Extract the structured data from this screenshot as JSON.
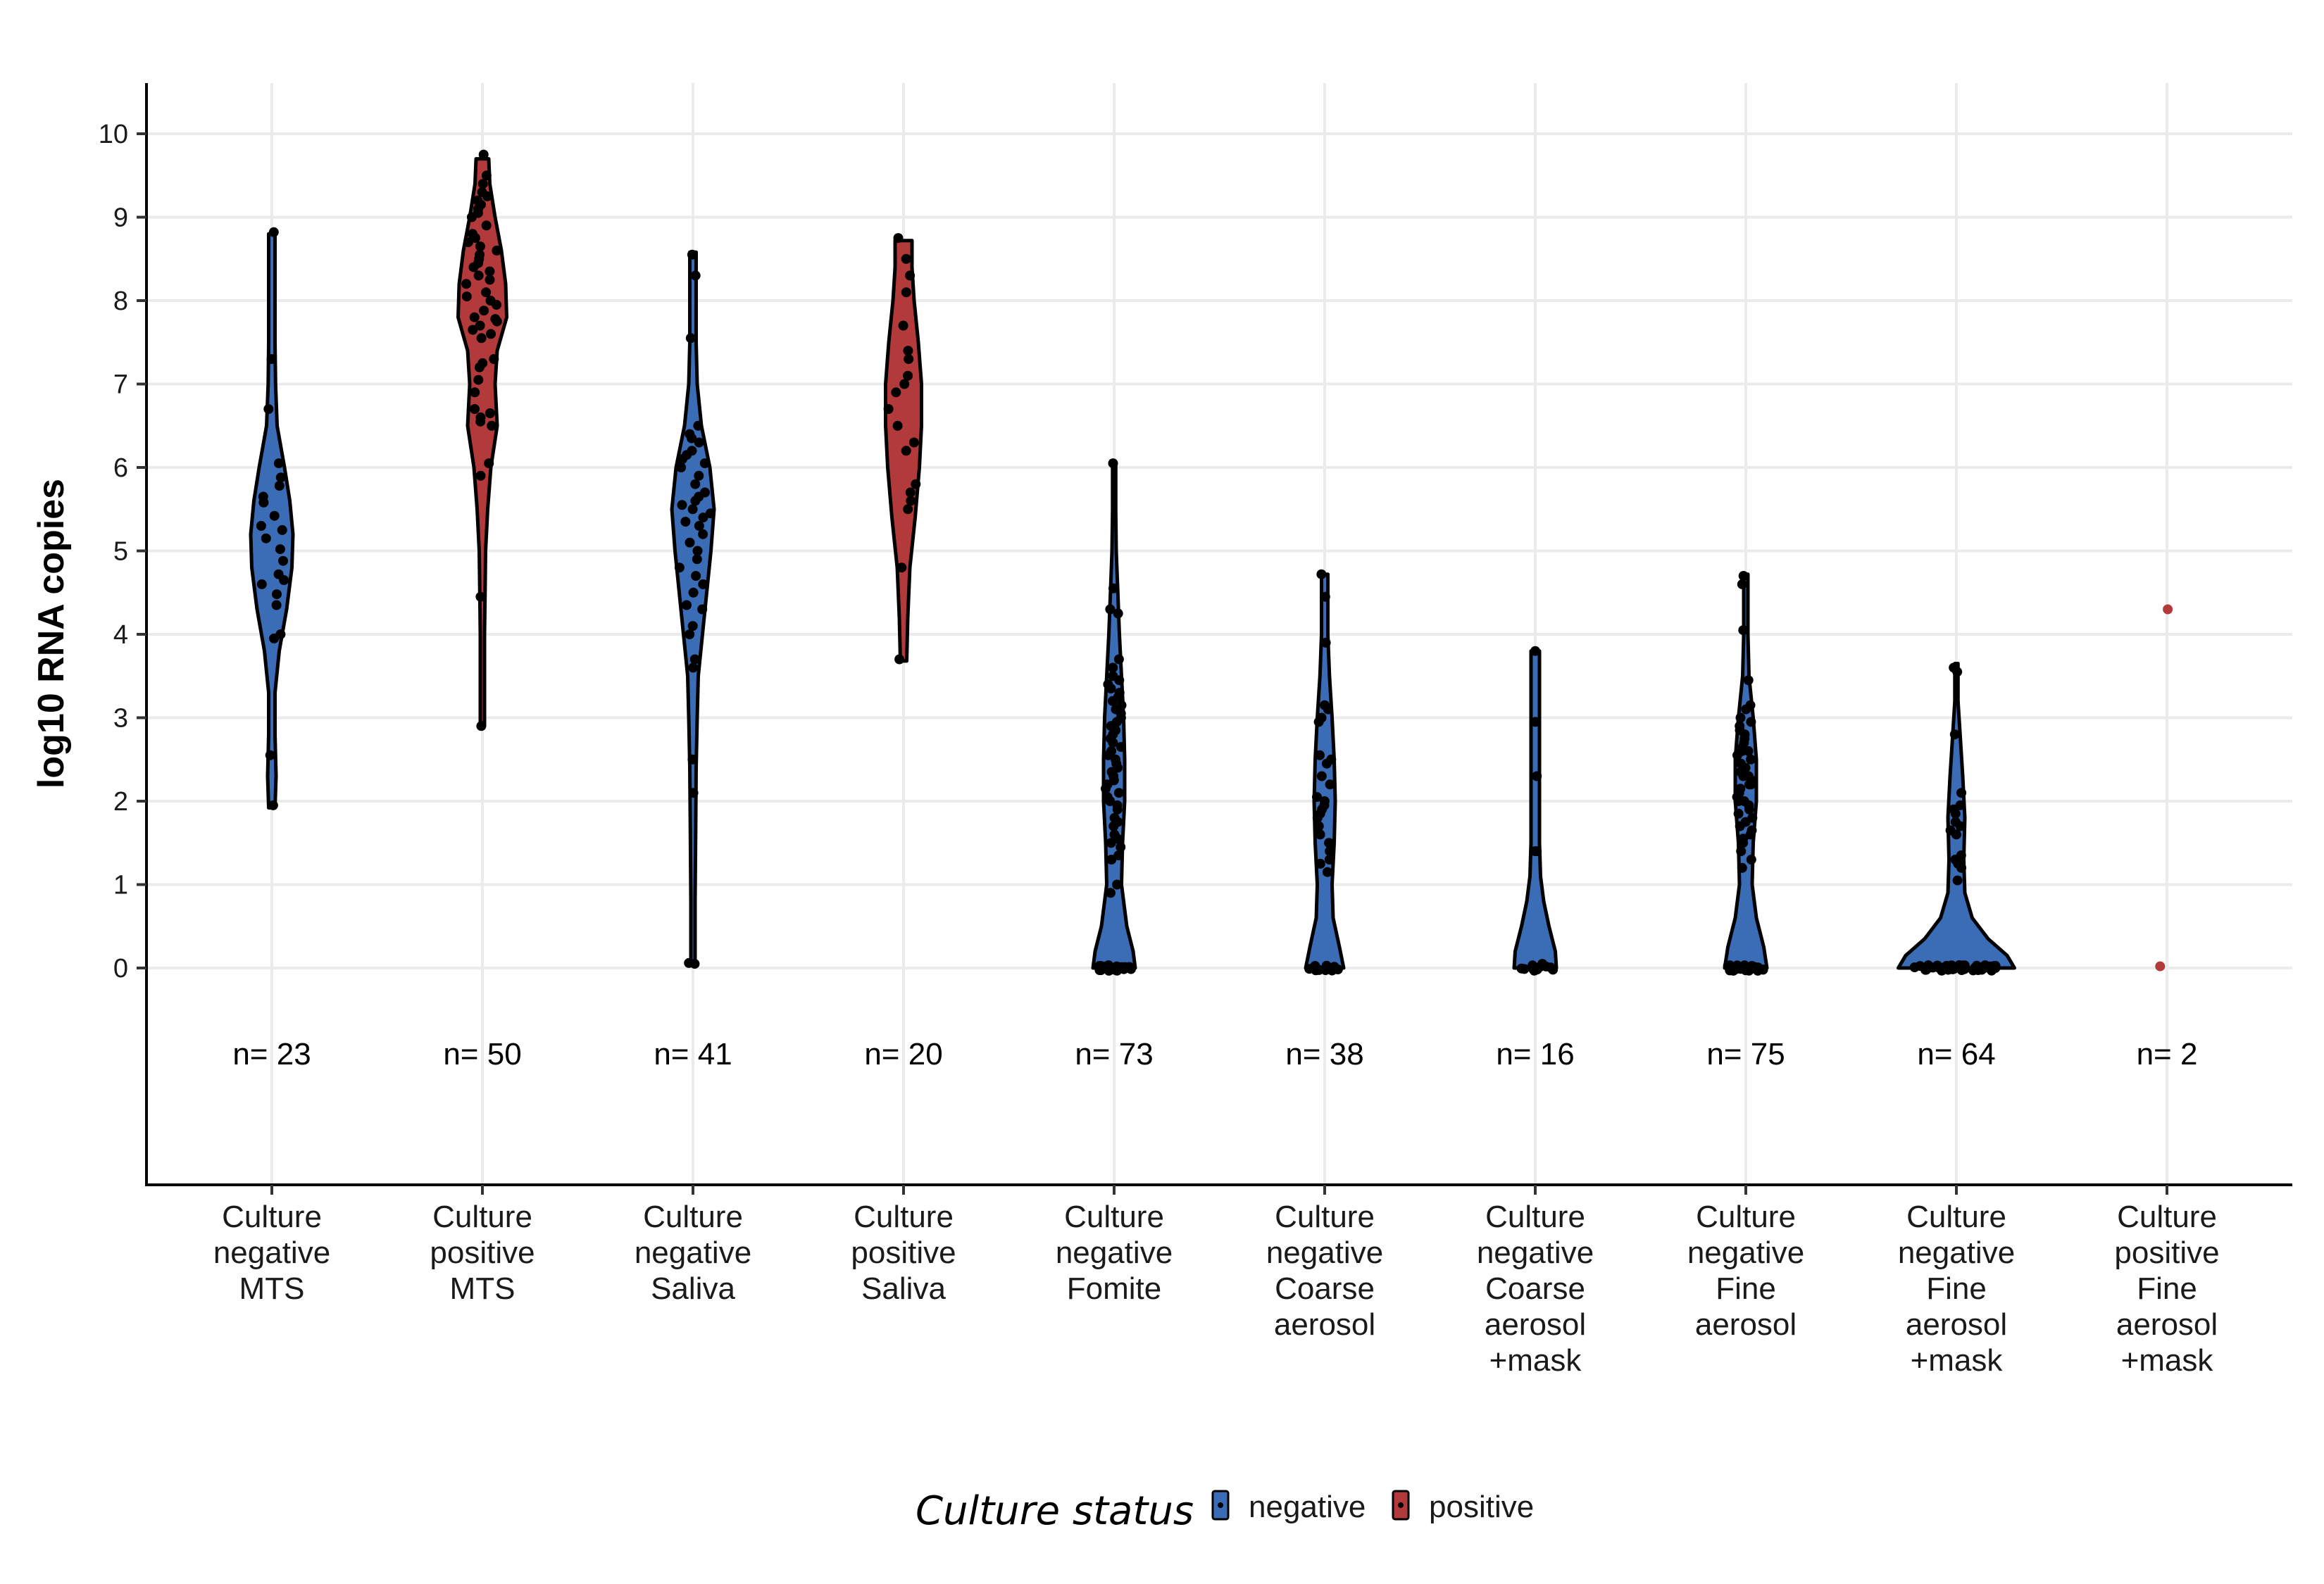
{
  "colors": {
    "negative": "#3a6db5",
    "positive": "#b33a3a",
    "grid": "#ebebeb",
    "axis": "#000000"
  },
  "chart_data": {
    "type": "violin",
    "ylabel": "log10 RNA copies",
    "ylim": [
      -2.6,
      10.6
    ],
    "yticks": [
      "0",
      "1",
      "2",
      "3",
      "4",
      "5",
      "6",
      "7",
      "8",
      "9",
      "10"
    ],
    "grid": true,
    "legend": {
      "title": "Culture status",
      "position": "bottom",
      "entries": [
        "negative",
        "positive"
      ]
    },
    "groups": [
      {
        "label": [
          "Culture",
          "negative",
          "MTS"
        ],
        "status": "negative",
        "n": "n= 23",
        "ymin": 1.92,
        "ymax": 8.8,
        "widths": [
          [
            1.92,
            0.03
          ],
          [
            2.3,
            0.04
          ],
          [
            2.8,
            0.03
          ],
          [
            3.3,
            0.03
          ],
          [
            3.8,
            0.07
          ],
          [
            4.3,
            0.14
          ],
          [
            4.8,
            0.19
          ],
          [
            5.2,
            0.2
          ],
          [
            5.6,
            0.17
          ],
          [
            6.0,
            0.12
          ],
          [
            6.5,
            0.05
          ],
          [
            7.0,
            0.035
          ],
          [
            7.5,
            0.03
          ],
          [
            8.0,
            0.03
          ],
          [
            8.5,
            0.03
          ],
          [
            8.8,
            0.03
          ]
        ],
        "points": [
          1.95,
          2.55,
          3.95,
          4.0,
          4.35,
          4.48,
          4.6,
          4.65,
          4.72,
          4.88,
          5.02,
          5.15,
          5.25,
          5.3,
          5.42,
          5.58,
          5.65,
          5.78,
          5.88,
          6.05,
          6.7,
          7.3,
          8.82
        ]
      },
      {
        "label": [
          "Culture",
          "positive",
          "MTS"
        ],
        "status": "positive",
        "n": "n= 50",
        "ymin": 2.9,
        "ymax": 9.7,
        "widths": [
          [
            2.9,
            0.02
          ],
          [
            3.5,
            0.02
          ],
          [
            4.0,
            0.02
          ],
          [
            4.5,
            0.025
          ],
          [
            5.0,
            0.03
          ],
          [
            5.5,
            0.05
          ],
          [
            6.0,
            0.08
          ],
          [
            6.5,
            0.14
          ],
          [
            7.0,
            0.12
          ],
          [
            7.4,
            0.14
          ],
          [
            7.8,
            0.23
          ],
          [
            8.2,
            0.22
          ],
          [
            8.6,
            0.18
          ],
          [
            9.0,
            0.12
          ],
          [
            9.4,
            0.07
          ],
          [
            9.7,
            0.06
          ]
        ],
        "points": [
          2.9,
          4.45,
          5.9,
          6.05,
          6.5,
          6.55,
          6.6,
          6.65,
          6.7,
          6.9,
          7.05,
          7.2,
          7.25,
          7.3,
          7.55,
          7.6,
          7.65,
          7.7,
          7.75,
          7.78,
          7.8,
          7.88,
          7.95,
          8.0,
          8.05,
          8.1,
          8.2,
          8.25,
          8.3,
          8.35,
          8.4,
          8.45,
          8.5,
          8.55,
          8.6,
          8.65,
          8.7,
          8.75,
          8.8,
          8.9,
          9.0,
          9.05,
          9.1,
          9.15,
          9.2,
          9.25,
          9.3,
          9.4,
          9.5,
          9.75
        ]
      },
      {
        "label": [
          "Culture",
          "negative",
          "Saliva"
        ],
        "status": "negative",
        "n": "n= 41",
        "ymin": 0.05,
        "ymax": 8.58,
        "widths": [
          [
            0.05,
            0.02
          ],
          [
            0.8,
            0.02
          ],
          [
            1.6,
            0.025
          ],
          [
            2.4,
            0.03
          ],
          [
            3.0,
            0.04
          ],
          [
            3.5,
            0.05
          ],
          [
            4.0,
            0.09
          ],
          [
            4.5,
            0.13
          ],
          [
            5.0,
            0.17
          ],
          [
            5.5,
            0.2
          ],
          [
            6.0,
            0.16
          ],
          [
            6.5,
            0.08
          ],
          [
            7.0,
            0.04
          ],
          [
            7.5,
            0.03
          ],
          [
            8.0,
            0.03
          ],
          [
            8.58,
            0.03
          ]
        ],
        "points": [
          0.05,
          0.06,
          2.1,
          2.5,
          3.6,
          3.7,
          4.0,
          4.1,
          4.3,
          4.35,
          4.5,
          4.6,
          4.7,
          4.8,
          4.9,
          5.0,
          5.1,
          5.2,
          5.3,
          5.35,
          5.4,
          5.45,
          5.5,
          5.55,
          5.6,
          5.65,
          5.7,
          5.8,
          5.9,
          6.0,
          6.05,
          6.1,
          6.15,
          6.2,
          6.3,
          6.4,
          6.5,
          7.55,
          8.3,
          8.55,
          6.35
        ]
      },
      {
        "label": [
          "Culture",
          "positive",
          "Saliva"
        ],
        "status": "positive",
        "n": "n= 20",
        "ymin": 3.68,
        "ymax": 8.72,
        "widths": [
          [
            3.68,
            0.03
          ],
          [
            4.2,
            0.04
          ],
          [
            4.8,
            0.06
          ],
          [
            5.4,
            0.11
          ],
          [
            6.0,
            0.15
          ],
          [
            6.5,
            0.17
          ],
          [
            7.0,
            0.17
          ],
          [
            7.5,
            0.14
          ],
          [
            8.0,
            0.1
          ],
          [
            8.4,
            0.08
          ],
          [
            8.72,
            0.08
          ]
        ],
        "points": [
          3.7,
          4.8,
          5.5,
          5.6,
          5.7,
          5.8,
          6.2,
          6.3,
          6.5,
          6.7,
          6.9,
          7.0,
          7.1,
          7.3,
          7.4,
          7.7,
          8.1,
          8.3,
          8.5,
          8.75
        ]
      },
      {
        "label": [
          "Culture",
          "negative",
          "Fomite"
        ],
        "status": "negative",
        "n": "n= 73",
        "ymin": 0,
        "ymax": 6.05,
        "widths": [
          [
            0,
            0.2
          ],
          [
            0.2,
            0.18
          ],
          [
            0.5,
            0.12
          ],
          [
            1.0,
            0.07
          ],
          [
            1.5,
            0.08
          ],
          [
            2.0,
            0.1
          ],
          [
            2.5,
            0.1
          ],
          [
            3.0,
            0.09
          ],
          [
            3.5,
            0.07
          ],
          [
            4.0,
            0.05
          ],
          [
            4.5,
            0.035
          ],
          [
            5.0,
            0.02
          ],
          [
            5.5,
            0.015
          ],
          [
            6.05,
            0.015
          ]
        ],
        "points": [
          0,
          0,
          0,
          0,
          0,
          0,
          0,
          0,
          0,
          0,
          0,
          0,
          0,
          0,
          0,
          0,
          0,
          0,
          0,
          0,
          0,
          0,
          0,
          0.9,
          1.0,
          1.3,
          1.35,
          1.5,
          1.6,
          1.75,
          1.8,
          1.9,
          1.95,
          2.0,
          2.05,
          2.1,
          2.15,
          2.2,
          2.25,
          2.3,
          2.35,
          2.4,
          2.45,
          2.5,
          2.6,
          2.7,
          2.8,
          2.85,
          2.9,
          3.0,
          3.05,
          3.1,
          3.2,
          3.3,
          3.35,
          3.4,
          3.5,
          3.6,
          3.7,
          4.25,
          4.3,
          4.55,
          6.05,
          2.55,
          2.65,
          2.75,
          1.45,
          1.55,
          3.15,
          3.25,
          1.7,
          2.95,
          3.45
        ]
      },
      {
        "label": [
          "Culture",
          "negative",
          "Coarse",
          "aerosol"
        ],
        "status": "negative",
        "n": "n= 38",
        "ymin": 0,
        "ymax": 4.72,
        "widths": [
          [
            0,
            0.18
          ],
          [
            0.25,
            0.14
          ],
          [
            0.6,
            0.08
          ],
          [
            1.0,
            0.07
          ],
          [
            1.5,
            0.09
          ],
          [
            2.0,
            0.1
          ],
          [
            2.5,
            0.09
          ],
          [
            3.0,
            0.07
          ],
          [
            3.5,
            0.045
          ],
          [
            4.0,
            0.03
          ],
          [
            4.72,
            0.03
          ]
        ],
        "points": [
          0,
          0,
          0,
          0,
          0,
          0,
          0,
          0,
          0,
          0,
          0,
          0,
          0,
          1.15,
          1.25,
          1.3,
          1.4,
          1.5,
          1.6,
          1.7,
          1.8,
          1.85,
          1.9,
          1.95,
          2.0,
          2.05,
          2.3,
          2.45,
          2.5,
          2.55,
          2.95,
          3.0,
          3.1,
          3.15,
          3.9,
          4.45,
          4.72,
          2.2
        ]
      },
      {
        "label": [
          "Culture",
          "negative",
          "Coarse",
          "aerosol",
          "+mask"
        ],
        "status": "negative",
        "n": "n= 16",
        "ymin": 0,
        "ymax": 3.8,
        "widths": [
          [
            0,
            0.2
          ],
          [
            0.2,
            0.19
          ],
          [
            0.5,
            0.13
          ],
          [
            0.8,
            0.08
          ],
          [
            1.1,
            0.05
          ],
          [
            1.5,
            0.04
          ],
          [
            2.0,
            0.04
          ],
          [
            2.5,
            0.04
          ],
          [
            3.0,
            0.04
          ],
          [
            3.5,
            0.04
          ],
          [
            3.8,
            0.04
          ]
        ],
        "points": [
          0,
          0,
          0,
          0,
          0,
          0,
          0,
          0,
          0,
          0,
          1.4,
          1.4,
          2.3,
          2.95,
          3.8,
          0.05
        ]
      },
      {
        "label": [
          "Culture",
          "negative",
          "Fine",
          "aerosol"
        ],
        "status": "negative",
        "n": "n= 75",
        "ymin": 0,
        "ymax": 4.72,
        "widths": [
          [
            0,
            0.2
          ],
          [
            0.25,
            0.17
          ],
          [
            0.6,
            0.1
          ],
          [
            1.0,
            0.06
          ],
          [
            1.5,
            0.07
          ],
          [
            2.0,
            0.1
          ],
          [
            2.5,
            0.1
          ],
          [
            3.0,
            0.07
          ],
          [
            3.5,
            0.03
          ],
          [
            4.0,
            0.02
          ],
          [
            4.72,
            0.02
          ]
        ],
        "points": [
          0,
          0,
          0,
          0,
          0,
          0,
          0,
          0,
          0,
          0,
          0,
          0,
          0,
          0,
          0,
          0,
          0,
          0,
          0,
          0,
          0,
          0,
          0,
          0,
          0,
          0,
          0,
          0,
          0,
          0,
          1.2,
          1.4,
          1.5,
          1.6,
          1.7,
          1.75,
          1.8,
          1.85,
          1.9,
          1.95,
          2.0,
          2.05,
          2.1,
          2.15,
          2.2,
          2.25,
          2.3,
          2.35,
          2.4,
          2.45,
          2.5,
          2.55,
          2.6,
          2.65,
          2.7,
          2.75,
          2.8,
          2.85,
          2.9,
          2.95,
          3.0,
          3.1,
          3.15,
          3.45,
          4.05,
          4.6,
          4.7,
          1.65,
          2.2,
          2.4,
          1.3,
          1.55,
          2.0,
          2.3,
          2.6
        ]
      },
      {
        "label": [
          "Culture",
          "negative",
          "Fine",
          "aerosol",
          "+mask"
        ],
        "status": "negative",
        "n": "n= 64",
        "ymin": 0,
        "ymax": 3.65,
        "widths": [
          [
            0,
            0.55
          ],
          [
            0.15,
            0.48
          ],
          [
            0.35,
            0.3
          ],
          [
            0.6,
            0.15
          ],
          [
            0.9,
            0.08
          ],
          [
            1.3,
            0.07
          ],
          [
            1.8,
            0.08
          ],
          [
            2.3,
            0.06
          ],
          [
            2.8,
            0.035
          ],
          [
            3.2,
            0.015
          ],
          [
            3.65,
            0.015
          ]
        ],
        "points": [
          0,
          0,
          0,
          0,
          0,
          0,
          0,
          0,
          0,
          0,
          0,
          0,
          0,
          0,
          0,
          0,
          0,
          0,
          0,
          0,
          0,
          0,
          0,
          0,
          0,
          0,
          0,
          0,
          0,
          0,
          0,
          0,
          0,
          0,
          0,
          0,
          0,
          0,
          0,
          0,
          0,
          0,
          0,
          0,
          0,
          0,
          0,
          0,
          1.05,
          1.2,
          1.3,
          1.35,
          1.65,
          1.7,
          1.75,
          1.85,
          1.9,
          1.95,
          2.1,
          2.8,
          3.55,
          3.6,
          1.25,
          1.6
        ]
      },
      {
        "label": [
          "Culture",
          "positive",
          "Fine",
          "aerosol",
          "+mask"
        ],
        "status": "positive",
        "n": "n= 2",
        "ymin": null,
        "ymax": null,
        "widths": [],
        "points": [
          4.3,
          0.02
        ]
      }
    ]
  }
}
